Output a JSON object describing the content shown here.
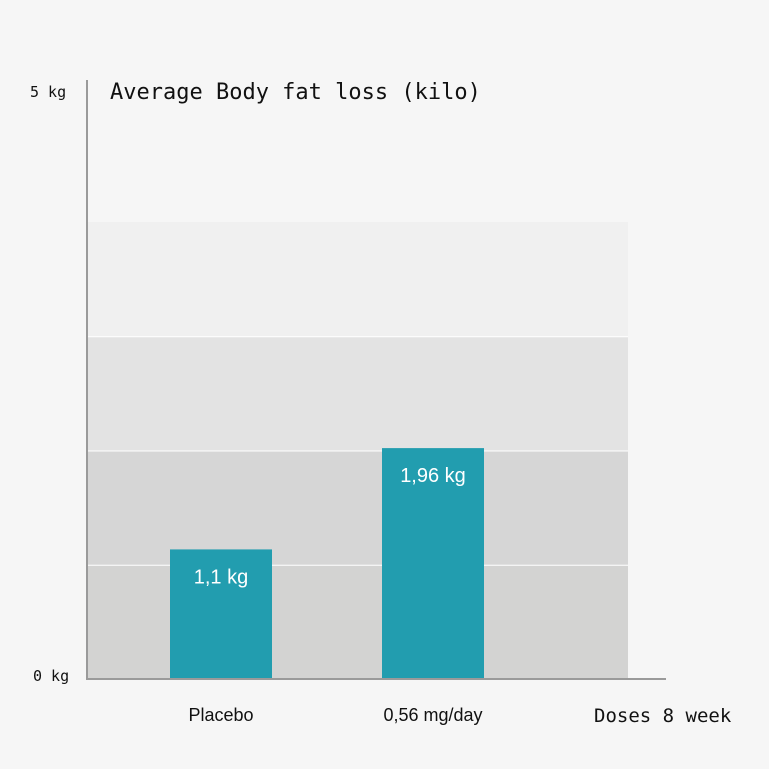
{
  "chart_data": {
    "type": "bar",
    "title": "Average Body fat loss (kilo)",
    "ylim": [
      0,
      5
    ],
    "yticks": [
      "0 kg",
      "5 kg"
    ],
    "xlabel": "Doses 8 week",
    "categories": [
      "Placebo",
      "0,56 mg/day"
    ],
    "values": [
      1.1,
      1.96
    ],
    "data_labels": [
      "1,1 kg",
      "1,96 kg"
    ],
    "background_bands": [
      {
        "from": 0,
        "to": 0.97,
        "color": "#d3d3d2"
      },
      {
        "from": 0.97,
        "to": 1.94,
        "color": "#d6d6d6"
      },
      {
        "from": 1.94,
        "to": 2.91,
        "color": "#e3e3e3"
      },
      {
        "from": 2.91,
        "to": 3.88,
        "color": "#f0f0f0"
      }
    ],
    "colors": {
      "bar": "#229daf",
      "axis": "#9a9a9a",
      "band_divider": "#ffffff",
      "text": "#111111",
      "bar_label": "#ffffff"
    }
  }
}
